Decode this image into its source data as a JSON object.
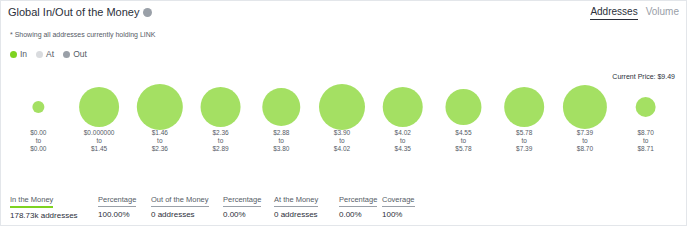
{
  "header": {
    "title": "Global In/Out of the Money",
    "tabs": [
      "Addresses",
      "Volume"
    ],
    "active_tab": "Addresses",
    "note": "* Showing all addresses currently holding LINK"
  },
  "chart_data": {
    "type": "bubble",
    "categories": [
      "$0.00 to $0.00",
      "$0.000000 to $1.45",
      "$1.46 to $2.36",
      "$2.36 to $2.89",
      "$2.88 to $3.80",
      "$3.90 to $4.02",
      "$4.02 to $4.35",
      "$4.55 to $5.78",
      "$5.78 to $7.39",
      "$7.39 to $8.70",
      "$8.70 to $8.71"
    ],
    "series": [
      {
        "name": "In",
        "color": "#7ed321",
        "values": [
          1624,
          18038,
          23858,
          18038,
          16281,
          23858,
          18038,
          14612,
          18038,
          21828,
          4510
        ]
      },
      {
        "name": "At",
        "color": "#d9dbde",
        "values": [
          0,
          0,
          0,
          0,
          0,
          0,
          0,
          0,
          0,
          0,
          0
        ]
      },
      {
        "name": "Out",
        "color": "#9aa0a8",
        "values": [
          0,
          0,
          0,
          0,
          0,
          0,
          0,
          0,
          0,
          0,
          0
        ]
      }
    ],
    "annotations": [
      {
        "text": "Current Price: $9.49"
      }
    ],
    "legend": "top-left",
    "grid": false,
    "tick_labels": "x"
  },
  "stats": [
    {
      "label": "In the Money",
      "value": "178.73k addresses"
    },
    {
      "label": "Percentage",
      "value": "100.00%"
    },
    {
      "label": "Out of the Money",
      "value": "0 addresses"
    },
    {
      "label": "Percentage",
      "value": "0.00%"
    },
    {
      "label": "At the Money",
      "value": "0 addresses"
    },
    {
      "label": "Percentage",
      "value": "0.00%"
    },
    {
      "label": "Coverage",
      "value": "100%"
    }
  ]
}
